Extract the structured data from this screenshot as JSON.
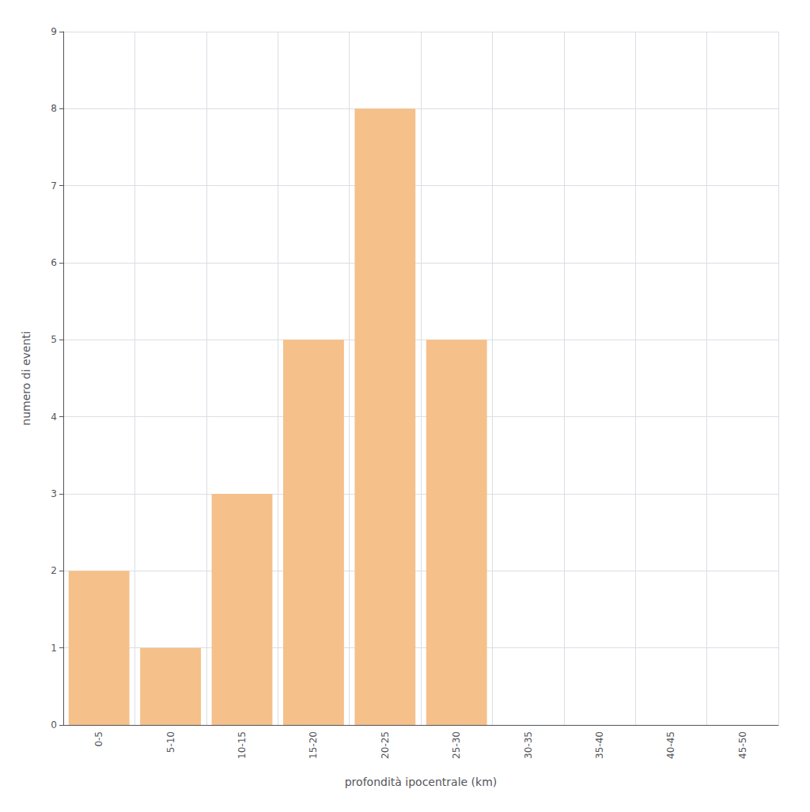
{
  "chart_data": {
    "type": "bar",
    "categories": [
      "0-5",
      "5-10",
      "10-15",
      "15-20",
      "20-25",
      "25-30",
      "30-35",
      "35-40",
      "40-45",
      "45-50"
    ],
    "values": [
      2,
      1,
      3,
      5,
      8,
      5,
      0,
      0,
      0,
      0
    ],
    "color": "#f5c08a",
    "xlabel": "profondità ipocentrale (km)",
    "ylabel": "numero di eventi",
    "ylim": [
      0,
      9
    ],
    "yticks": [
      0,
      1,
      2,
      3,
      4,
      5,
      6,
      7,
      8,
      9
    ],
    "grid": true
  }
}
